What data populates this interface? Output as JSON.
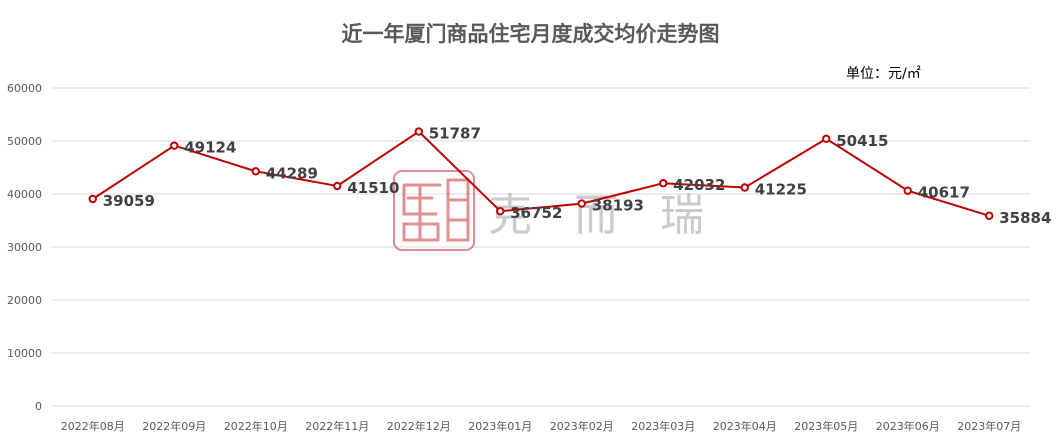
{
  "title": "近一年厦门商品住宅月度成交均价走势图",
  "unit_label": "单位：元/㎡",
  "watermark": {
    "seal": "克而瑞",
    "text": "克 而 瑞",
    "seal_color": "#c9333a"
  },
  "colors": {
    "line": "#c00000",
    "marker_fill": "#ffffff",
    "grid": "#d9d9d9",
    "axis_text": "#595959",
    "label": "#404040"
  },
  "chart_data": {
    "type": "line",
    "title": "近一年厦门商品住宅月度成交均价走势图",
    "unit": "单位：元/㎡",
    "categories": [
      "2022年08月",
      "2022年09月",
      "2022年10月",
      "2022年11月",
      "2022年12月",
      "2023年01月",
      "2023年02月",
      "2023年03月",
      "2023年04月",
      "2023年05月",
      "2023年06月",
      "2023年07月"
    ],
    "series": [
      {
        "values": [
          39059,
          49124,
          44289,
          41510,
          51787,
          36752,
          38193,
          42032,
          41225,
          50415,
          40617,
          35884
        ]
      }
    ],
    "y_ticks": [
      "0",
      "10000",
      "20000",
      "30000",
      "40000",
      "50000",
      "60000"
    ],
    "ylim": [
      0,
      60000
    ],
    "grid": true,
    "legend": "none",
    "data_labels": true
  }
}
